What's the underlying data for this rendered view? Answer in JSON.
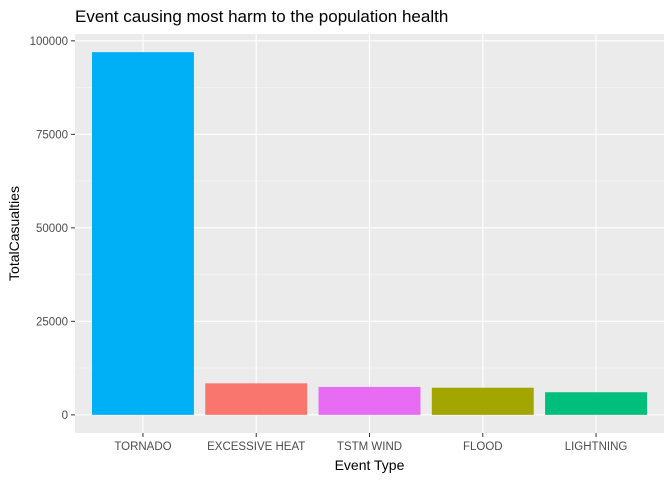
{
  "chart_data": {
    "type": "bar",
    "title": "Event causing most harm to the population health",
    "xlabel": "Event Type",
    "ylabel": "TotalCasualties",
    "categories": [
      "TORNADO",
      "EXCESSIVE HEAT",
      "TSTM WIND",
      "FLOOD",
      "LIGHTNING"
    ],
    "values": [
      96979,
      8428,
      7461,
      7259,
      6046
    ],
    "colors": [
      "#00B0F6",
      "#F8766D",
      "#E76BF3",
      "#A3A500",
      "#00BF7D"
    ],
    "yticks": [
      0,
      25000,
      50000,
      75000,
      100000
    ],
    "ytick_labels": [
      "0",
      "25000",
      "50000",
      "75000",
      "100000"
    ],
    "ylim": [
      -4850,
      101830
    ],
    "panel_background": "#EBEBEB",
    "grid": true,
    "legend": "none"
  }
}
